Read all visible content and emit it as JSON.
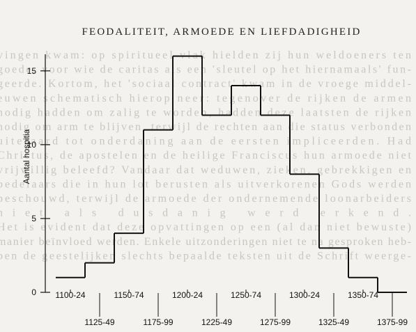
{
  "background_text": [
    "vingen kwam: op spiritueel vlak hielden zij hun weldoeners ten",
    "goede, voor wie de caritas als een 'sleutel op het hiernamaals' fun-",
    "geerde. Kortom, het 'sociaal contract' kwam in de vroege middel-",
    "euwen schematisch hierop neer: tegenover de rijken de armen",
    "nodig hadden om zalig te worden, hadden deze laatsten de rijken",
    "nodig om arm te blijven, terwijl de rechten aan die status verbonden",
    "uiteraard tot onderdaning aan de eersten impliceerden. Had",
    "Christus, de apostelen en de heilige Franciscus hun armoede niet",
    "vrijwillig beleefd? Vandaar dat weduwen, zieken, gebrekkigen en",
    "bedelaars die in hun lot berusten als uitverkorenen Gods werden",
    "beschouwd, terwijl de armoede der ondernemende loonarbeiders",
    "niet als dusdanig werd erkend.",
    "Het is evident dat deze opvattingen op een (al dan niet bewuste)",
    "manier beïnvloed werden. Enkele uitzonderingen niet te na gesproken heb-",
    "ben de geestelijken slechts bepaalde teksten uit de Schrift weerge-"
  ],
  "chart_data": {
    "type": "step",
    "title": "FEODALITEIT, ARMOEDE EN LIEFDADIGHEID",
    "y_label": "Aantal hospitia",
    "categories": [
      "1100-24",
      "1125-49",
      "1150-74",
      "1175-99",
      "1200-24",
      "1225-49",
      "1250-74",
      "1275-99",
      "1300-24",
      "1325-49",
      "1350-74",
      "1375-99"
    ],
    "values": [
      1,
      2,
      4,
      11,
      16,
      12,
      14,
      12,
      8,
      3,
      1,
      0
    ],
    "color": "#111111",
    "ylim": [
      0,
      16.5
    ],
    "yticks": [
      0,
      5,
      10,
      15
    ]
  }
}
